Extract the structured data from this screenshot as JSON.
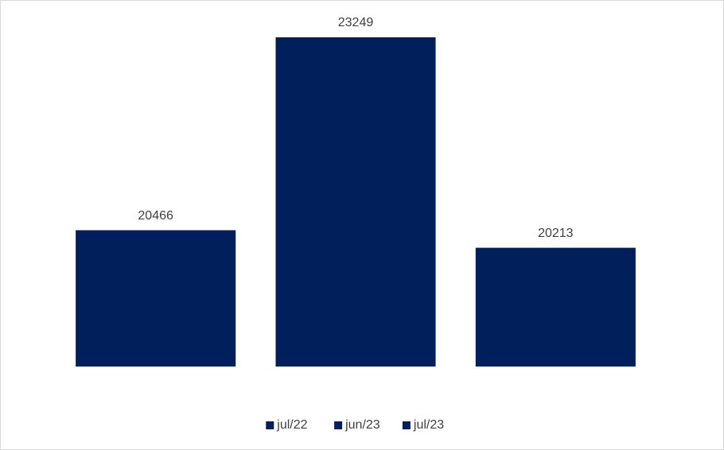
{
  "chart_data": {
    "type": "bar",
    "categories": [
      null
    ],
    "series": [
      {
        "name": "jul/22",
        "color": "#001f5b",
        "values": [
          20466
        ]
      },
      {
        "name": "jun/23",
        "color": "#001f5b",
        "values": [
          23249
        ]
      },
      {
        "name": "jul/23",
        "color": "#001f5b",
        "values": [
          20213
        ]
      }
    ],
    "ylim": [
      18500,
      23500
    ],
    "grid": false,
    "legend": "bottom"
  }
}
